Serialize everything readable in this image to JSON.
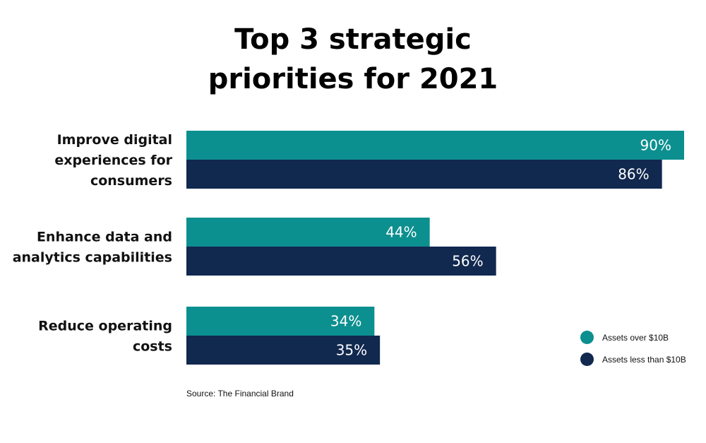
{
  "chart_data": {
    "type": "bar",
    "orientation": "horizontal",
    "title_lines": [
      "Top 3 strategic",
      "priorities for 2021"
    ],
    "categories": [
      [
        "Improve digital",
        "experiences for",
        "consumers"
      ],
      [
        "Enhance data and",
        "analytics capabilities"
      ],
      [
        "Reduce operating",
        "costs"
      ]
    ],
    "series": [
      {
        "name": "Assets over $10B",
        "values": [
          90,
          44,
          34
        ],
        "color": "#0c8f8f"
      },
      {
        "name": "Assets less than $10B",
        "values": [
          86,
          56,
          35
        ],
        "color": "#11284f"
      }
    ],
    "value_suffix": "%",
    "xlim": [
      0,
      90
    ],
    "grid": false,
    "legend_position": "bottom-right"
  },
  "source": "Source: The Financial Brand"
}
